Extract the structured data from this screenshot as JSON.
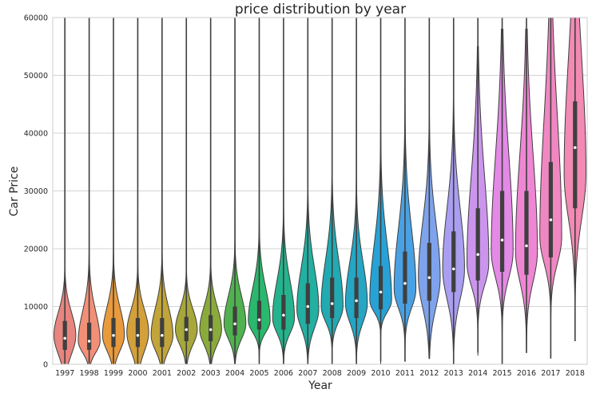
{
  "chart_data": {
    "type": "violin",
    "title": "price distribution by year",
    "xlabel": "Year",
    "ylabel": "Car Price",
    "ylim": [
      0,
      60000
    ],
    "yticks": [
      0,
      10000,
      20000,
      30000,
      40000,
      50000,
      60000
    ],
    "grid": true,
    "categories": [
      "1997",
      "1998",
      "1999",
      "2000",
      "2001",
      "2002",
      "2003",
      "2004",
      "2005",
      "2006",
      "2007",
      "2008",
      "2009",
      "2010",
      "2011",
      "2012",
      "2013",
      "2014",
      "2015",
      "2016",
      "2017",
      "2018"
    ],
    "colors": [
      "#e8857f",
      "#f29077",
      "#e89a3d",
      "#d4a03a",
      "#c1a43a",
      "#a7a73a",
      "#8aab3a",
      "#50b24f",
      "#29b86d",
      "#25b38d",
      "#22b0a2",
      "#22aab3",
      "#24a6c4",
      "#27a2d6",
      "#49a1e3",
      "#7ea3ec",
      "#a99ef0",
      "#cb95ee",
      "#e489e6",
      "#ef86d4",
      "#f187c2",
      "#f28ab3"
    ],
    "medians": [
      4500,
      4000,
      5000,
      5000,
      5000,
      6000,
      6000,
      7000,
      7700,
      8500,
      10000,
      10500,
      11000,
      12500,
      14000,
      15000,
      16500,
      19000,
      21500,
      20500,
      25000,
      37500
    ],
    "q1": [
      2500,
      2500,
      3000,
      3000,
      3000,
      4000,
      4000,
      5000,
      6000,
      6000,
      7000,
      8000,
      8000,
      9500,
      10500,
      11000,
      12500,
      14500,
      16000,
      15500,
      18500,
      27000
    ],
    "q3": [
      7500,
      7200,
      8000,
      8000,
      8000,
      8200,
      8500,
      10000,
      11000,
      12000,
      14000,
      15000,
      15000,
      17000,
      19500,
      21000,
      23000,
      27000,
      30000,
      30000,
      35000,
      45500
    ],
    "whisker_max": [
      60000,
      60000,
      60000,
      60000,
      60000,
      60000,
      60000,
      60000,
      60000,
      60000,
      60000,
      60000,
      60000,
      60000,
      60000,
      60000,
      60000,
      60000,
      60000,
      60000,
      60000,
      60000
    ],
    "whisker_min": [
      0,
      0,
      0,
      0,
      0,
      0,
      0,
      0,
      0,
      0,
      0,
      0,
      0,
      500,
      500,
      1500,
      0,
      2000,
      0,
      2000,
      1000,
      4000
    ],
    "density_peak": [
      5000,
      4000,
      5000,
      5500,
      5000,
      6000,
      6000,
      7000,
      7500,
      8000,
      9500,
      10000,
      10500,
      11000,
      13000,
      15000,
      16500,
      17500,
      19500,
      19500,
      22000,
      33000
    ],
    "density_extent_max": [
      22000,
      28000,
      25000,
      26000,
      24000,
      25000,
      26000,
      28000,
      30000,
      32000,
      35000,
      38000,
      42000,
      45000,
      48000,
      48000,
      52000,
      55000,
      58000,
      58000,
      60000,
      60000
    ],
    "density_extent_min": [
      0,
      0,
      0,
      0,
      0,
      0,
      0,
      0,
      0,
      0,
      0,
      0,
      0,
      0,
      500,
      1000,
      1500,
      1500,
      1500,
      2000,
      1000,
      5000
    ]
  }
}
